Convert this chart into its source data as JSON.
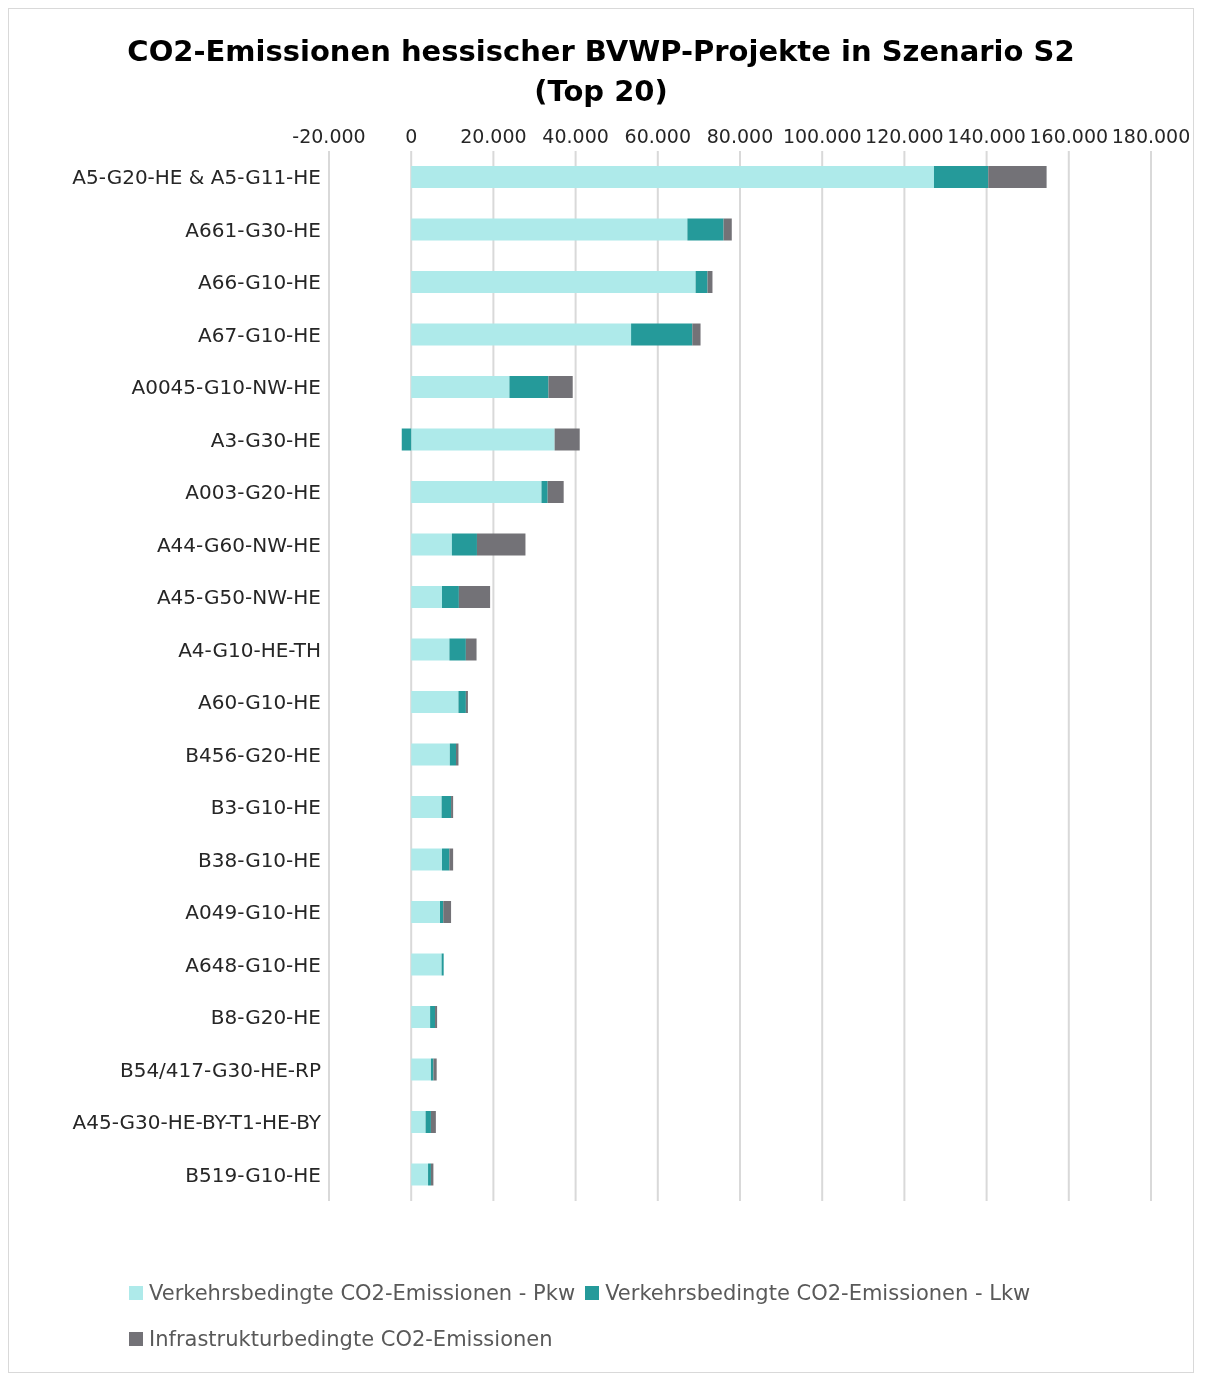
{
  "chart_data": {
    "type": "bar",
    "orientation": "horizontal",
    "stacked": true,
    "title": "CO2-Emissionen hessischer BVWP-Projekte in Szenario S2 (Top 20)",
    "categories": [
      "A5-G20-HE & A5-G11-HE",
      "A661-G30-HE",
      "A66-G10-HE",
      "A67-G10-HE",
      "A0045-G10-NW-HE",
      "A3-G30-HE",
      "A003-G20-HE",
      "A44-G60-NW-HE",
      "A45-G50-NW-HE",
      "A4-G10-HE-TH",
      "A60-G10-HE",
      "B456-G20-HE",
      "B3-G10-HE",
      "B38-G10-HE",
      "A049-G10-HE",
      "A648-G10-HE",
      "B8-G20-HE",
      "B54/417-G30-HE-RP",
      "A45-G30-HE-BY-T1-HE-BY",
      "B519-G10-HE"
    ],
    "series": [
      {
        "name": "Verkehrsbedingte CO2-Emissionen - Pkw",
        "color": "#aeeaea",
        "values": [
          127200,
          67200,
          69200,
          53500,
          23900,
          34900,
          31700,
          9900,
          7500,
          9300,
          11500,
          9400,
          7400,
          7500,
          7000,
          7400,
          4600,
          4800,
          3500,
          4100
        ]
      },
      {
        "name": "Verkehrsbedingte CO2-Emissionen - Lkw",
        "color": "#259a9a",
        "values": [
          13200,
          8800,
          2900,
          14900,
          9500,
          -2300,
          1500,
          6100,
          4100,
          4000,
          1800,
          1500,
          2300,
          1800,
          800,
          500,
          1200,
          600,
          1300,
          700
        ]
      },
      {
        "name": "Infrastrukturbedingte CO2-Emissionen",
        "color": "#737277",
        "values": [
          14200,
          2000,
          1200,
          2000,
          5900,
          6100,
          3900,
          11800,
          7600,
          2600,
          500,
          600,
          500,
          900,
          1900,
          0,
          500,
          800,
          1200,
          600
        ]
      }
    ],
    "xlim": [
      -20000,
      180000
    ],
    "xticks": [
      {
        "value": -20000,
        "label": "-20.000"
      },
      0,
      {
        "value": 20000,
        "label": "20.000"
      },
      {
        "value": 40000,
        "label": "40.000"
      },
      {
        "value": 60000,
        "label": "60.000"
      },
      {
        "value": 80000,
        "label": "80.000"
      },
      {
        "value": 100000,
        "label": "100.000"
      },
      {
        "value": 120000,
        "label": "120.000"
      },
      {
        "value": 140000,
        "label": "140.000"
      },
      {
        "value": 160000,
        "label": "160.000"
      },
      {
        "value": 180000,
        "label": "180.000"
      }
    ],
    "grid": "x",
    "legend": "bottom"
  }
}
